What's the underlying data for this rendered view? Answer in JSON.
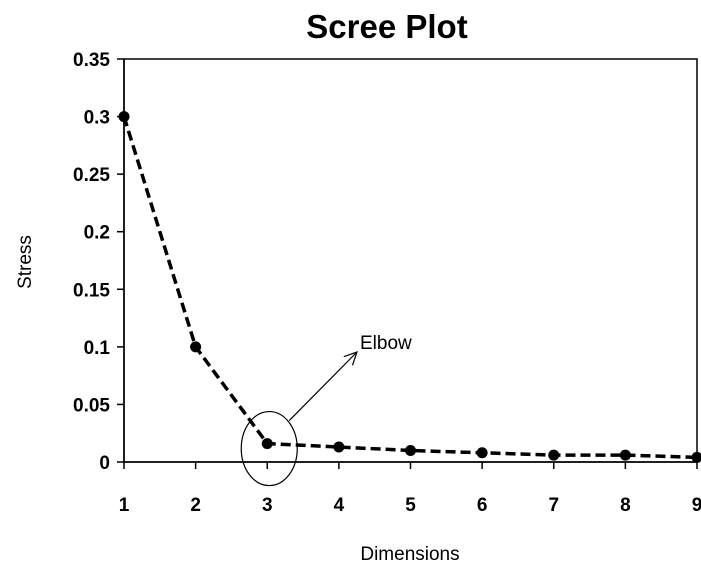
{
  "chart_data": {
    "type": "line",
    "title": "Scree Plot",
    "xlabel": "Dimensions",
    "ylabel": "Stress",
    "x": [
      1,
      2,
      3,
      4,
      5,
      6,
      7,
      8,
      9
    ],
    "series": [
      {
        "values": [
          0.3,
          0.1,
          0.016,
          0.013,
          0.01,
          0.008,
          0.006,
          0.006,
          0.004
        ],
        "color": "#000000",
        "line_style": "dashed",
        "marker": "circle"
      }
    ],
    "xlim": [
      1,
      9
    ],
    "ylim": [
      0,
      0.35
    ],
    "xticks": [
      "1",
      "2",
      "3",
      "4",
      "5",
      "6",
      "7",
      "8",
      "9"
    ],
    "yticks": [
      "0",
      "0.05",
      "0.1",
      "0.15",
      "0.2",
      "0.25",
      "0.3",
      "0.35"
    ],
    "grid": false,
    "legend": "none",
    "annotations": [
      {
        "text": "Elbow",
        "x": 3,
        "y": 0.016,
        "style": "ellipse-and-arrow"
      }
    ]
  }
}
